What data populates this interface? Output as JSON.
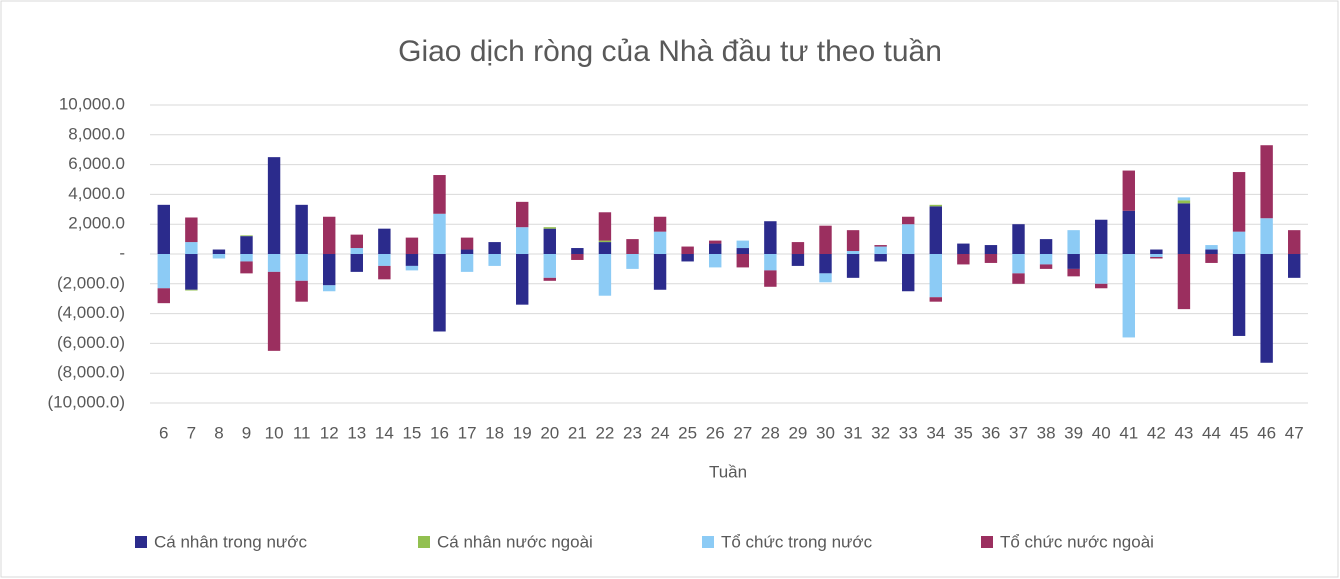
{
  "chart_data": {
    "type": "stacked_bar",
    "title": "Giao dịch ròng của Nhà đầu tư theo tuần",
    "x_label": "Tuần",
    "categories": [
      "6",
      "7",
      "8",
      "9",
      "10",
      "11",
      "12",
      "13",
      "14",
      "15",
      "16",
      "17",
      "18",
      "19",
      "20",
      "21",
      "22",
      "23",
      "24",
      "25",
      "26",
      "27",
      "28",
      "29",
      "30",
      "31",
      "32",
      "33",
      "34",
      "35",
      "36",
      "37",
      "38",
      "39",
      "40",
      "41",
      "42",
      "43",
      "44",
      "45",
      "46",
      "47"
    ],
    "series": [
      {
        "name": "Cá nhân trong nước",
        "color": "#2b2b8c",
        "values": [
          3300,
          -2400,
          300,
          1200,
          6500,
          3300,
          -2100,
          -1200,
          1700,
          -800,
          -5200,
          300,
          800,
          -3400,
          1700,
          400,
          800,
          0,
          -2400,
          -500,
          700,
          400,
          2200,
          -800,
          -1300,
          -1600,
          -500,
          -2500,
          3200,
          700,
          600,
          2000,
          1000,
          -1000,
          2300,
          2900,
          300,
          3400,
          300,
          -5500,
          -7300,
          -1600
        ]
      },
      {
        "name": "Cá nhân nước ngoài",
        "color": "#92c050",
        "values": [
          0,
          -50,
          0,
          50,
          0,
          0,
          0,
          0,
          0,
          0,
          0,
          0,
          0,
          0,
          100,
          0,
          100,
          0,
          0,
          0,
          0,
          0,
          0,
          0,
          0,
          0,
          0,
          0,
          100,
          0,
          0,
          0,
          0,
          0,
          0,
          0,
          0,
          200,
          0,
          0,
          0,
          0
        ]
      },
      {
        "name": "Tổ chức trong nước",
        "color": "#8ccbf5",
        "values": [
          -2300,
          800,
          -300,
          -500,
          -1200,
          -1800,
          -400,
          400,
          -800,
          -300,
          2700,
          -1200,
          -800,
          1800,
          -1600,
          0,
          -2800,
          -1000,
          1500,
          0,
          -900,
          500,
          -1100,
          0,
          -600,
          200,
          500,
          2000,
          -2900,
          0,
          0,
          -1300,
          -700,
          1600,
          -2000,
          -5600,
          -200,
          200,
          300,
          1500,
          2400,
          0
        ]
      },
      {
        "name": "Tổ chức nước ngoài",
        "color": "#9b2f5f",
        "values": [
          -1000,
          1650,
          0,
          -800,
          -5300,
          -1400,
          2500,
          900,
          -900,
          1100,
          2600,
          800,
          0,
          1700,
          -200,
          -400,
          1900,
          1000,
          1000,
          500,
          200,
          -900,
          -1100,
          800,
          1900,
          1400,
          100,
          500,
          -300,
          -700,
          -600,
          -700,
          -300,
          -500,
          -300,
          2700,
          -100,
          -3700,
          -600,
          4000,
          4900,
          1600
        ]
      }
    ],
    "ylim": [
      -10000,
      10000
    ],
    "yticks": [
      {
        "value": -10000,
        "label": "(10,000.0)"
      },
      {
        "value": -8000,
        "label": "(8,000.0)"
      },
      {
        "value": -6000,
        "label": "(6,000.0)"
      },
      {
        "value": -4000,
        "label": "(4,000.0)"
      },
      {
        "value": -2000,
        "label": "(2,000.0)"
      },
      {
        "value": 0,
        "label": "-"
      },
      {
        "value": 2000,
        "label": "2,000.0"
      },
      {
        "value": 4000,
        "label": "4,000.0"
      },
      {
        "value": 6000,
        "label": "6,000.0"
      },
      {
        "value": 8000,
        "label": "8,000.0"
      },
      {
        "value": 10000,
        "label": "10,000.0"
      }
    ],
    "grid": true,
    "legend": "bottom"
  }
}
